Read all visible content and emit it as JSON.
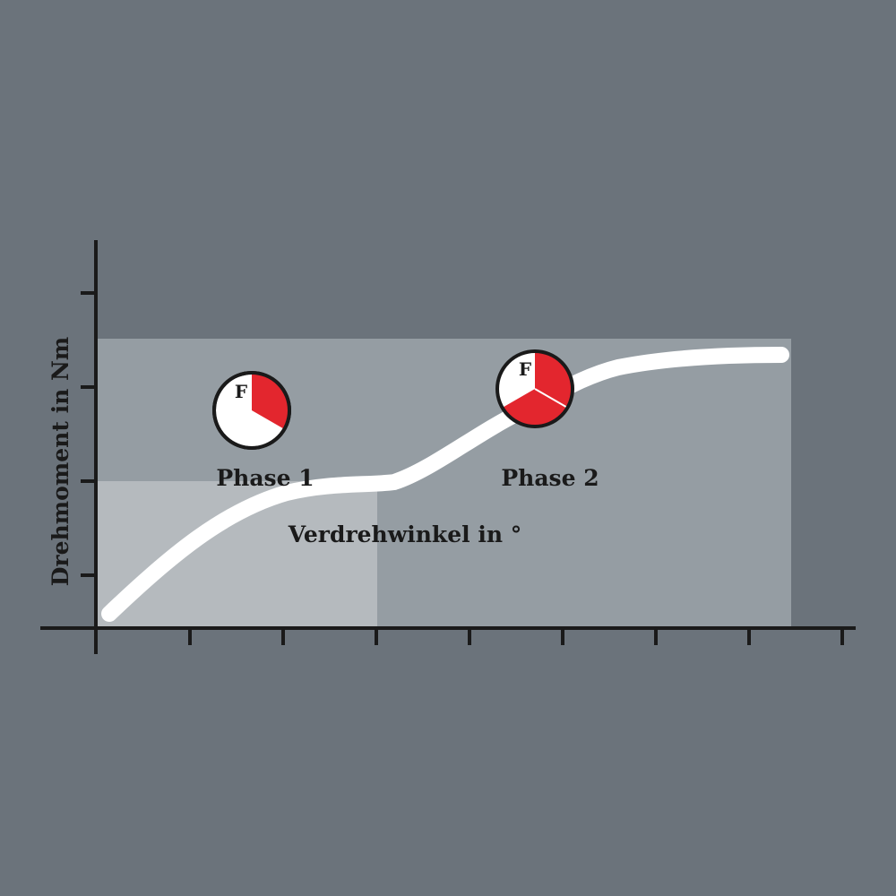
{
  "diagram": {
    "y_axis_label": "Drehmoment in Nm",
    "x_axis_label": "Verdrehwinkel in °",
    "phases": [
      {
        "label": "Phase 1",
        "icon_letter": "F",
        "red_fraction": 0.3333
      },
      {
        "label": "Phase 2",
        "icon_letter": "F",
        "red_fraction": 0.6667
      }
    ],
    "colors": {
      "background": "#6b737b",
      "panel": "#959da3",
      "panel_light": "#b5babe",
      "curve": "#ffffff",
      "accent_red": "#e3262e",
      "axis": "#1a1a1a"
    }
  }
}
